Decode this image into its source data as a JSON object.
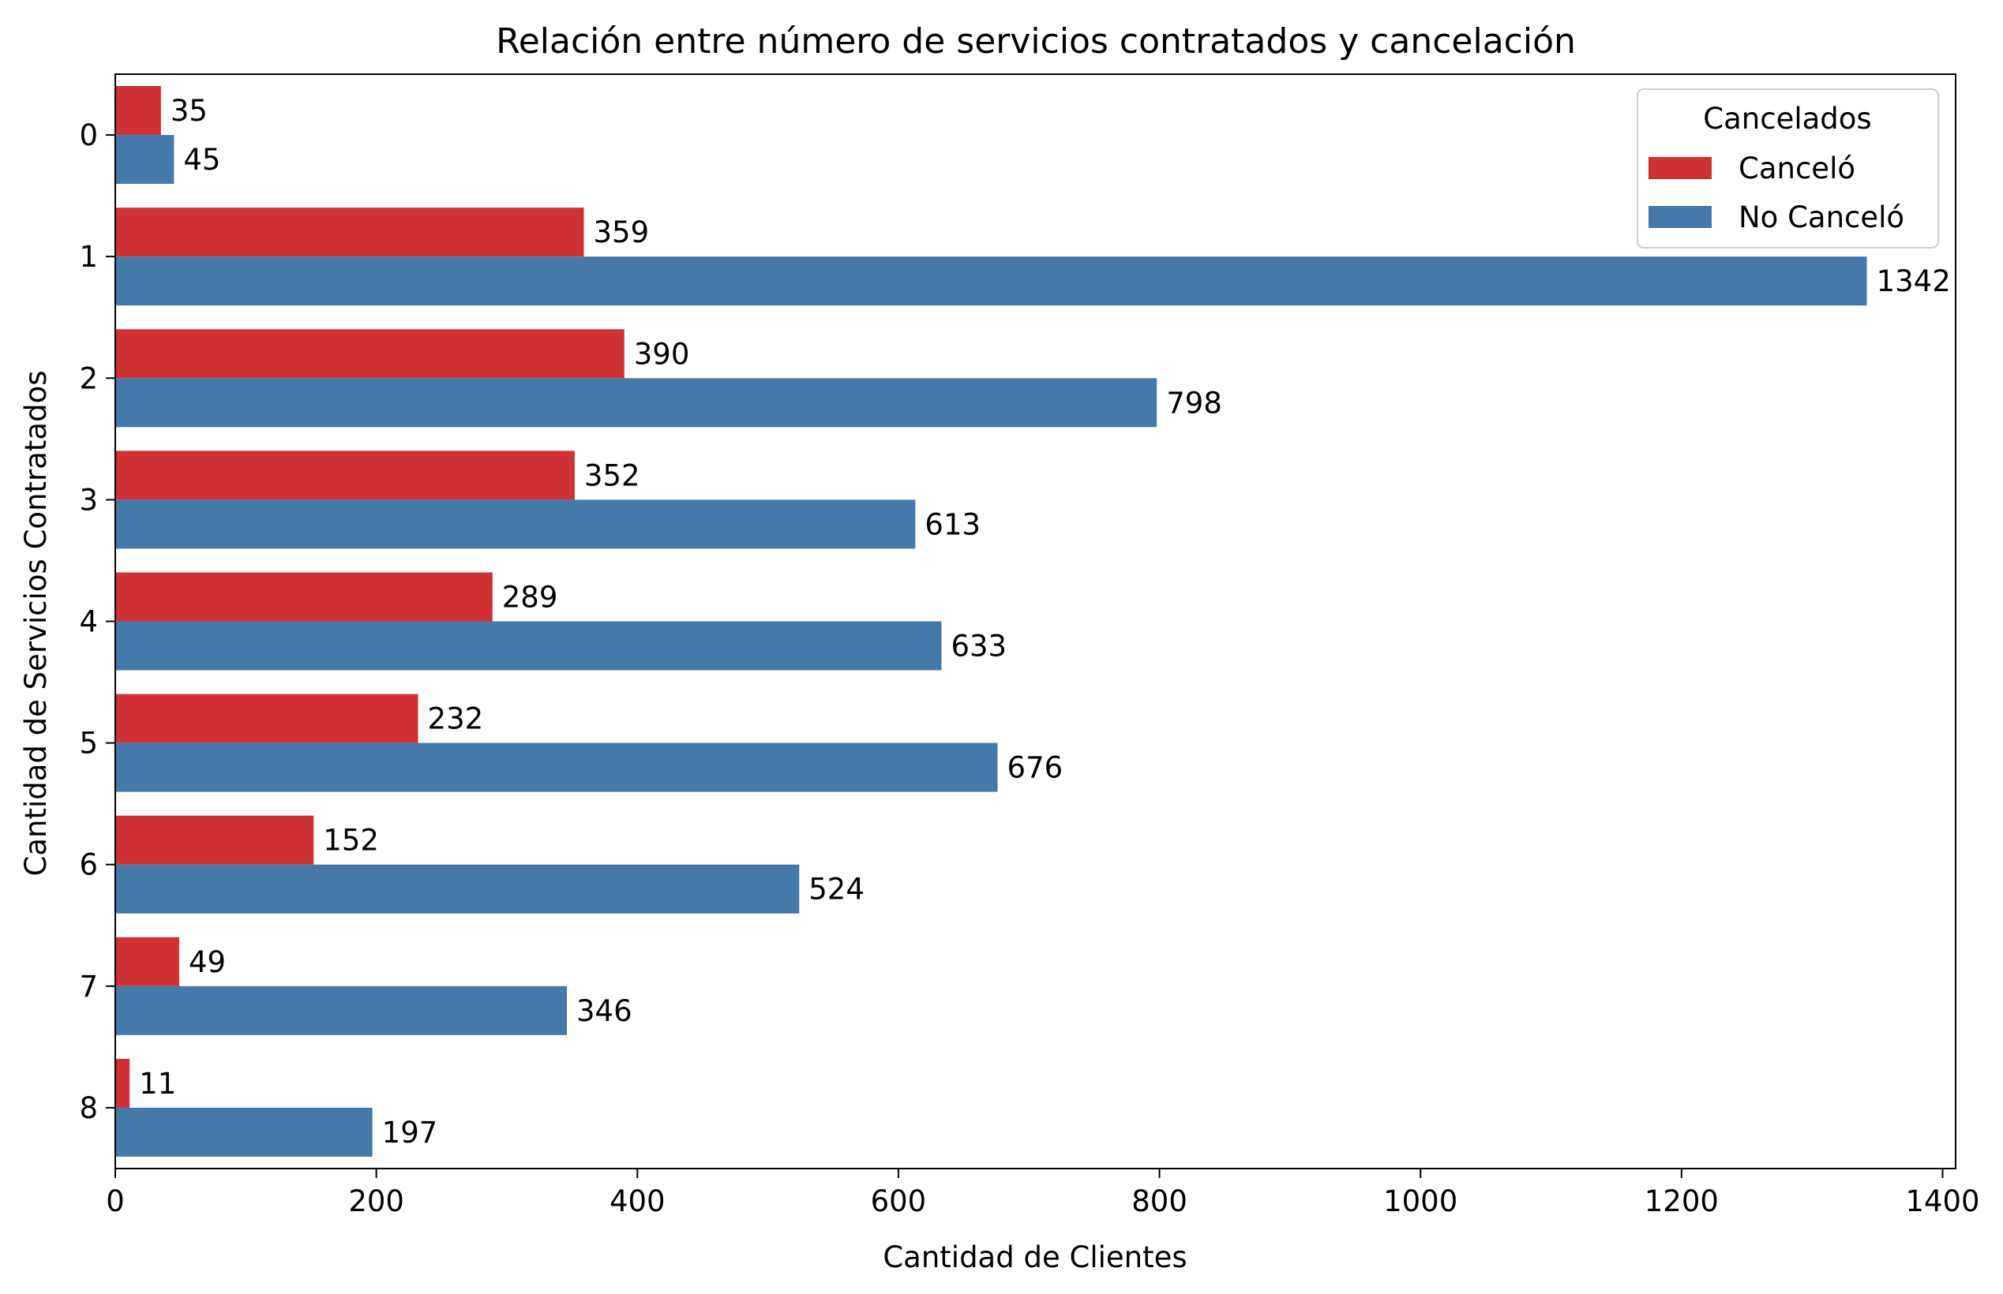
{
  "chart_data": {
    "type": "bar",
    "orientation": "horizontal",
    "title": "Relación entre número de servicios contratados y cancelación",
    "xlabel": "Cantidad de Clientes",
    "ylabel": "Cantidad de Servicios Contratados",
    "categories": [
      "0",
      "1",
      "2",
      "3",
      "4",
      "5",
      "6",
      "7",
      "8"
    ],
    "series": [
      {
        "name": "Canceló",
        "color": "#d03134",
        "values": [
          35,
          359,
          390,
          352,
          289,
          232,
          152,
          49,
          11
        ]
      },
      {
        "name": "No Canceló",
        "color": "#4579aa",
        "values": [
          45,
          1342,
          798,
          613,
          633,
          676,
          524,
          346,
          197
        ]
      }
    ],
    "xlim": [
      0,
      1410
    ],
    "xticks": [
      0,
      200,
      400,
      600,
      800,
      1000,
      1200,
      1400
    ],
    "xtick_labels": [
      "0",
      "200",
      "400",
      "600",
      "800",
      "1000",
      "1200",
      "1400"
    ],
    "grid": false,
    "legend": {
      "title": "Cancelados",
      "placement": "top-right"
    }
  }
}
